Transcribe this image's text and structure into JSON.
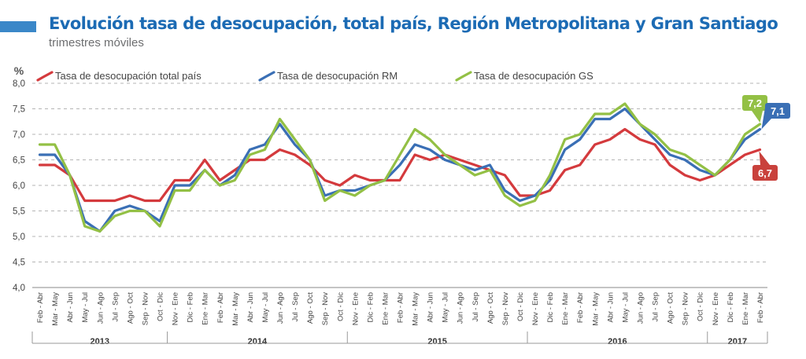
{
  "header": {
    "title": "Evolución tasa de desocupación, total país, Región Metropolitana y Gran Santiago",
    "subtitle": "trimestres móviles",
    "title_color": "#1c6bb4",
    "accent_color": "#3a87c8"
  },
  "chart_data": {
    "type": "line",
    "title": "Evolución tasa de desocupación, total país, Región Metropolitana y Gran Santiago",
    "subtitle": "trimestres móviles",
    "ylabel": "%",
    "ylim": [
      4.0,
      8.0
    ],
    "yticks": [
      "4,0",
      "4,5",
      "5,0",
      "5,5",
      "6,0",
      "6,5",
      "7,0",
      "7,5",
      "8,0"
    ],
    "grid": true,
    "legend_position": "top",
    "categories": [
      "Feb - Abr",
      "Mar - May",
      "Abr - Jun",
      "May - Jul",
      "Jun - Ago",
      "Jul - Sep",
      "Ago - Oct",
      "Sep - Nov",
      "Oct - Dic",
      "Nov - Ene",
      "Dic - Feb",
      "Ene - Mar",
      "Feb - Abr",
      "Mar - May",
      "Abr - Jun",
      "May - Jul",
      "Jun - Ago",
      "Jul - Sep",
      "Ago - Oct",
      "Sep - Nov",
      "Oct - Dic",
      "Nov - Ene",
      "Dic - Feb",
      "Ene - Mar",
      "Feb - Abr",
      "Mar - May",
      "Abr - Jun",
      "May - Jul",
      "Jun - Ago",
      "Jul - Sep",
      "Ago - Oct",
      "Sep - Nov",
      "Oct - Dic",
      "Nov - Ene",
      "Dic - Feb",
      "Ene - Mar",
      "Feb - Abr",
      "Mar - May",
      "Abr - Jun",
      "May - Jul",
      "Jun - Ago",
      "Jul - Sep",
      "Ago - Oct",
      "Sep - Nov",
      "Oct - Dic",
      "Nov - Ene",
      "Dic - Feb",
      "Ene - Mar",
      "Feb - Abr"
    ],
    "year_groups": [
      {
        "label": "2013",
        "start": 0,
        "end": 8
      },
      {
        "label": "2014",
        "start": 9,
        "end": 20
      },
      {
        "label": "2015",
        "start": 21,
        "end": 32
      },
      {
        "label": "2016",
        "start": 33,
        "end": 44
      },
      {
        "label": "2017",
        "start": 45,
        "end": 48
      }
    ],
    "series": [
      {
        "name": "Tasa de desocupación total país",
        "color": "#d43a3d",
        "values": [
          6.4,
          6.4,
          6.2,
          5.7,
          5.7,
          5.7,
          5.8,
          5.7,
          5.7,
          6.1,
          6.1,
          6.5,
          6.1,
          6.3,
          6.5,
          6.5,
          6.7,
          6.6,
          6.4,
          6.1,
          6.0,
          6.2,
          6.1,
          6.1,
          6.1,
          6.6,
          6.5,
          6.6,
          6.5,
          6.4,
          6.3,
          6.2,
          5.8,
          5.8,
          5.9,
          6.3,
          6.4,
          6.8,
          6.9,
          7.1,
          6.9,
          6.8,
          6.4,
          6.2,
          6.1,
          6.2,
          6.4,
          6.6,
          6.7
        ]
      },
      {
        "name": "Tasa de desocupación RM",
        "color": "#3a6fb5",
        "values": [
          6.6,
          6.6,
          6.2,
          5.3,
          5.1,
          5.5,
          5.6,
          5.5,
          5.3,
          6.0,
          6.0,
          6.3,
          6.0,
          6.2,
          6.7,
          6.8,
          7.2,
          6.8,
          6.5,
          5.8,
          5.9,
          5.9,
          6.0,
          6.1,
          6.4,
          6.8,
          6.7,
          6.5,
          6.4,
          6.3,
          6.4,
          5.9,
          5.7,
          5.8,
          6.1,
          6.7,
          6.9,
          7.3,
          7.3,
          7.5,
          7.2,
          6.9,
          6.6,
          6.5,
          6.3,
          6.2,
          6.5,
          6.9,
          7.1
        ]
      },
      {
        "name": "Tasa de desocupación GS",
        "color": "#93c045",
        "values": [
          6.8,
          6.8,
          6.2,
          5.2,
          5.1,
          5.4,
          5.5,
          5.5,
          5.2,
          5.9,
          5.9,
          6.3,
          6.0,
          6.1,
          6.6,
          6.7,
          7.3,
          6.9,
          6.5,
          5.7,
          5.9,
          5.8,
          6.0,
          6.1,
          6.6,
          7.1,
          6.9,
          6.6,
          6.4,
          6.2,
          6.3,
          5.8,
          5.6,
          5.7,
          6.2,
          6.9,
          7.0,
          7.4,
          7.4,
          7.6,
          7.2,
          7.0,
          6.7,
          6.6,
          6.4,
          6.2,
          6.5,
          7.0,
          7.2
        ]
      }
    ],
    "end_labels": [
      {
        "series": 2,
        "text": "7,2",
        "color": "#93c045"
      },
      {
        "series": 1,
        "text": "7,1",
        "color": "#3a6fb5"
      },
      {
        "series": 0,
        "text": "6,7",
        "color": "#c9413c"
      }
    ]
  }
}
